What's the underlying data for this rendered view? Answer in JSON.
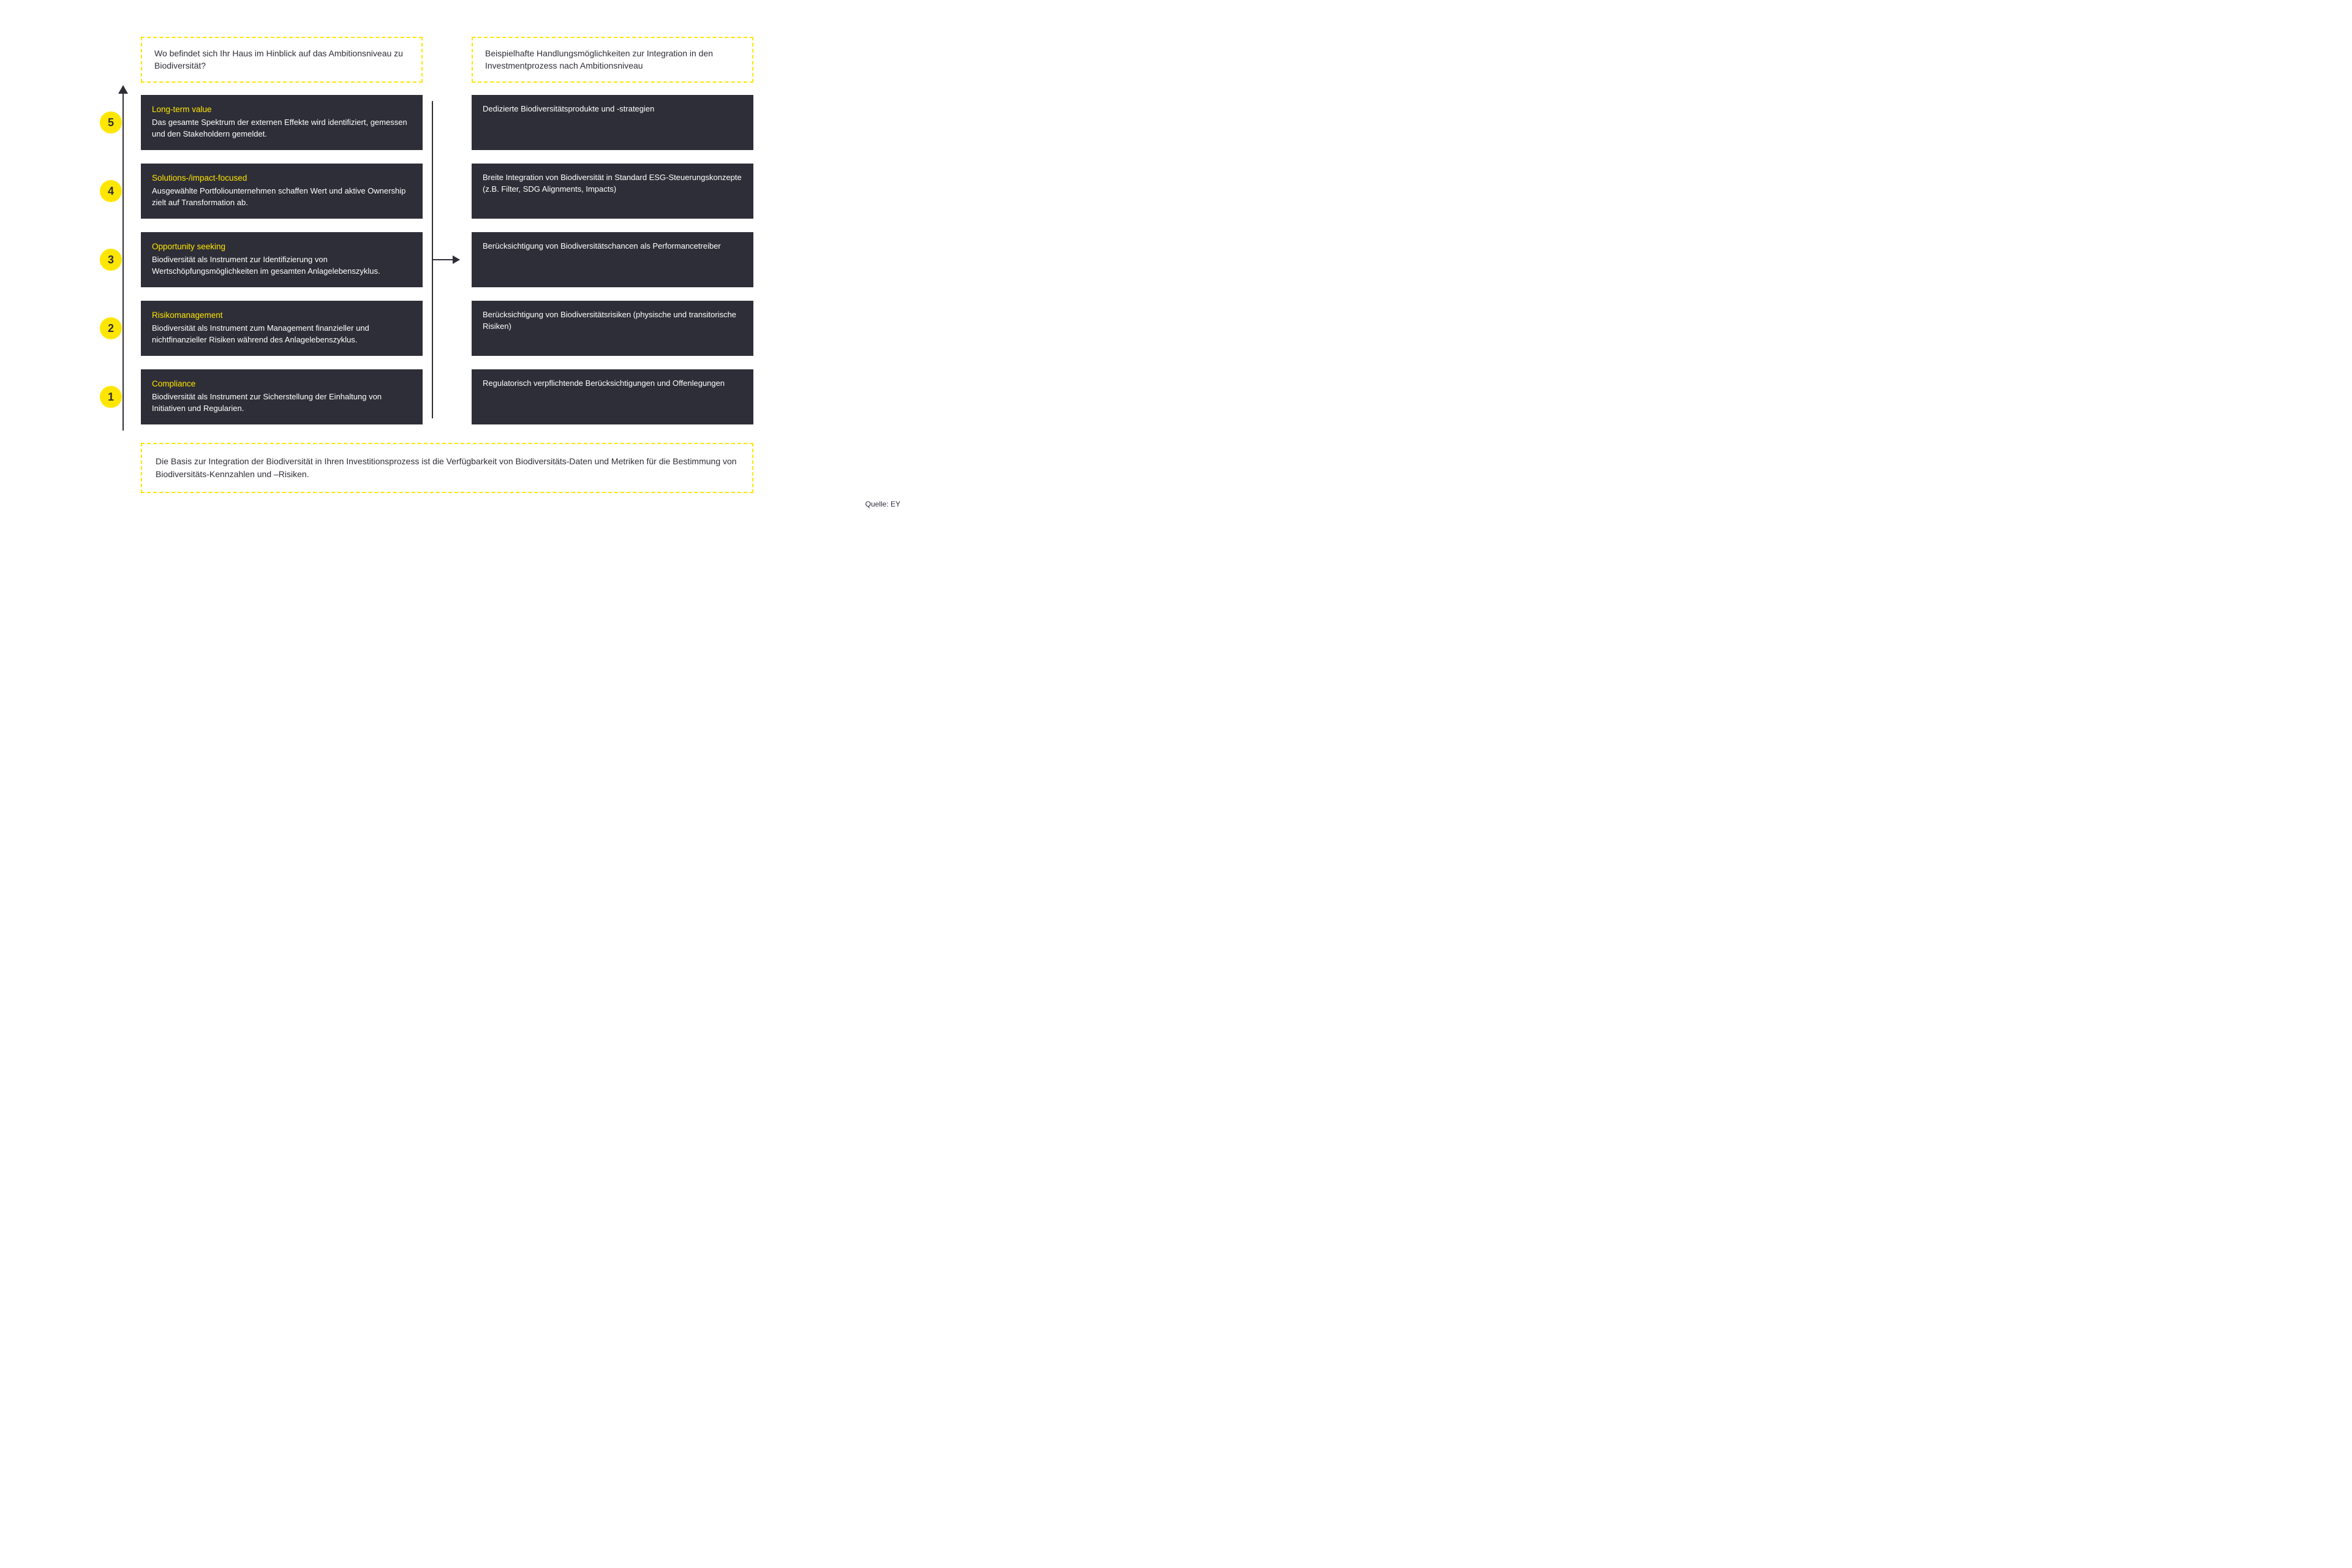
{
  "type": "diagram",
  "colors": {
    "accent_yellow": "#ffe600",
    "dark_box": "#2e2e38",
    "text_dark": "#2e2e38",
    "text_light": "#ffffff",
    "background": "#ffffff"
  },
  "header_left": "Wo befindet sich Ihr Haus im Hinblick auf das Ambitionsniveau zu Biodiversität?",
  "header_right": "Beispielhafte Handlungsmöglichkeiten zur Integration in den Investmentprozess nach Ambitionsniveau",
  "levels": [
    {
      "num": "5",
      "title": "Long-term value",
      "desc": "Das gesamte Spektrum der externen Effekte wird identifiziert, gemessen und den Stakeholdern gemeldet.",
      "action": "Dedizierte Biodiversitätsprodukte und -strategien"
    },
    {
      "num": "4",
      "title": "Solutions-/impact-focused",
      "desc": "Ausgewählte Portfoliounternehmen schaffen Wert und aktive Ownership zielt auf Transformation ab.",
      "action": "Breite Integration von Biodiversität in Standard ESG-Steuerungskonzepte (z.B. Filter, SDG Alignments, Impacts)"
    },
    {
      "num": "3",
      "title": "Opportunity seeking",
      "desc": "Biodiversität als Instrument zur Identifizierung von Wertschöpfungsmöglichkeiten im gesamten Anlagelebenszyklus.",
      "action": "Berücksichtigung von Biodiversitätschancen als Performancetreiber"
    },
    {
      "num": "2",
      "title": "Risikomanagement",
      "desc": "Biodiversität als Instrument zum Management finanzieller und nichtfinanzieller Risiken während des Anlagelebenszyklus.",
      "action": "Berücksichtigung von Biodiversitätsrisiken (physische und transitorische Risiken)"
    },
    {
      "num": "1",
      "title": "Compliance",
      "desc": "Biodiversität als Instrument zur Sicherstellung der Einhaltung von Initiativen und Regularien.",
      "action": "Regulatorisch verpflichtende Berücksichtigungen und Offenlegungen"
    }
  ],
  "footer": "Die Basis zur Integration der Biodiversität in Ihren Investitionsprozess ist die Verfügbarkeit von Biodiversitäts-Daten und Metriken für die Bestimmung von Biodiversitäts-Kennzahlen und –Risiken.",
  "source": "Quelle: EY"
}
